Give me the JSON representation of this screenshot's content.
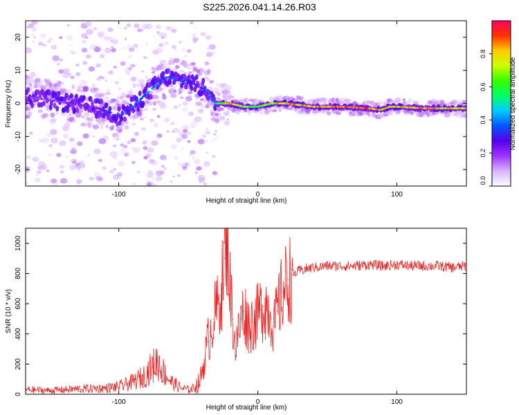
{
  "title": "S225.2026.041.14.26.R03",
  "colors": {
    "snr_line": "#ee2222",
    "axis": "#000000",
    "colormap": [
      "#ffffff",
      "#d9b3ff",
      "#a033ff",
      "#5500ee",
      "#0055ff",
      "#00ccff",
      "#00ff66",
      "#33ff00",
      "#ccff00",
      "#ffcc00",
      "#ff3300",
      "#ff0066"
    ]
  },
  "chart_data": [
    {
      "name": "spectrogram",
      "type": "heatmap",
      "xlabel": "Height of straight line (km)",
      "ylabel": "Frequency (Hz)",
      "xlim": [
        -167,
        150
      ],
      "ylim": [
        -25,
        25
      ],
      "xticks": [
        -100,
        0,
        100
      ],
      "xtick_labels": [
        "-100",
        "0",
        "100"
      ],
      "yticks": [
        -20,
        -10,
        0,
        10,
        20
      ],
      "ytick_labels": [
        "-20",
        "-10",
        "0",
        "10",
        "20"
      ],
      "ridge": {
        "x": [
          -167,
          -150,
          -135,
          -120,
          -110,
          -100,
          -90,
          -80,
          -72,
          -65,
          -58,
          -50,
          -42,
          -36,
          -32,
          -28,
          -20,
          -10,
          0,
          10,
          20,
          40,
          60,
          80,
          88,
          95,
          100,
          120,
          150
        ],
        "freq": [
          2,
          1,
          0,
          -1,
          -2,
          -4,
          -1,
          3,
          6,
          8,
          7,
          7,
          5,
          4,
          0,
          0,
          0,
          -1,
          -1,
          0,
          0,
          -1,
          -1,
          -1.5,
          -2,
          -1,
          -1,
          -1.5,
          -1.5
        ],
        "amplitude": [
          0.2,
          0.2,
          0.22,
          0.25,
          0.3,
          0.35,
          0.35,
          0.4,
          0.45,
          0.4,
          0.35,
          0.35,
          0.3,
          0.4,
          0.5,
          0.6,
          0.85,
          0.7,
          0.6,
          0.8,
          0.85,
          0.9,
          0.98,
          0.95,
          0.9,
          0.8,
          0.85,
          0.9,
          0.8
        ]
      }
    },
    {
      "name": "colorbar",
      "type": "colorbar",
      "label": "Normalized spectral amplitude",
      "range": [
        0,
        1
      ],
      "ticks": [
        0,
        0.2,
        0.4,
        0.6,
        0.8
      ],
      "tick_labels": [
        "0.0",
        "0.2",
        "0.4",
        "0.6",
        "0.8"
      ]
    },
    {
      "name": "snr",
      "type": "line",
      "xlabel": "Height of straight line (km)",
      "ylabel": "SNR (10 * v/v)",
      "xlim": [
        -167,
        150
      ],
      "ylim": [
        0,
        1100
      ],
      "xticks": [
        -100,
        0,
        100
      ],
      "xtick_labels": [
        "-100",
        "0",
        "100"
      ],
      "yticks": [
        0,
        200,
        400,
        600,
        800,
        1000
      ],
      "ytick_labels": [
        "0",
        "200",
        "400",
        "600",
        "800",
        "1000"
      ],
      "series": [
        {
          "name": "SNR",
          "x": [
            -167,
            -150,
            -130,
            -110,
            -100,
            -90,
            -82,
            -76,
            -72,
            -68,
            -62,
            -55,
            -50,
            -46,
            -42,
            -40,
            -38,
            -36,
            -34,
            -32,
            -30,
            -28,
            -26,
            -24,
            -22,
            -20,
            -18,
            -16,
            -14,
            -12,
            -10,
            -8,
            -6,
            -4,
            -2,
            0,
            2,
            4,
            6,
            8,
            10,
            12,
            14,
            16,
            18,
            20,
            22,
            25,
            30,
            40,
            50,
            60,
            70,
            80,
            90,
            100,
            110,
            120,
            130,
            140,
            150
          ],
          "values": [
            30,
            25,
            35,
            40,
            50,
            80,
            120,
            180,
            220,
            150,
            80,
            40,
            30,
            40,
            80,
            150,
            250,
            350,
            420,
            500,
            550,
            600,
            700,
            900,
            1050,
            700,
            500,
            300,
            400,
            500,
            550,
            500,
            450,
            480,
            500,
            520,
            560,
            580,
            600,
            550,
            500,
            450,
            550,
            620,
            680,
            720,
            760,
            790,
            820,
            840,
            850,
            850,
            850,
            860,
            850,
            860,
            850,
            850,
            850,
            840,
            850
          ]
        }
      ]
    }
  ]
}
